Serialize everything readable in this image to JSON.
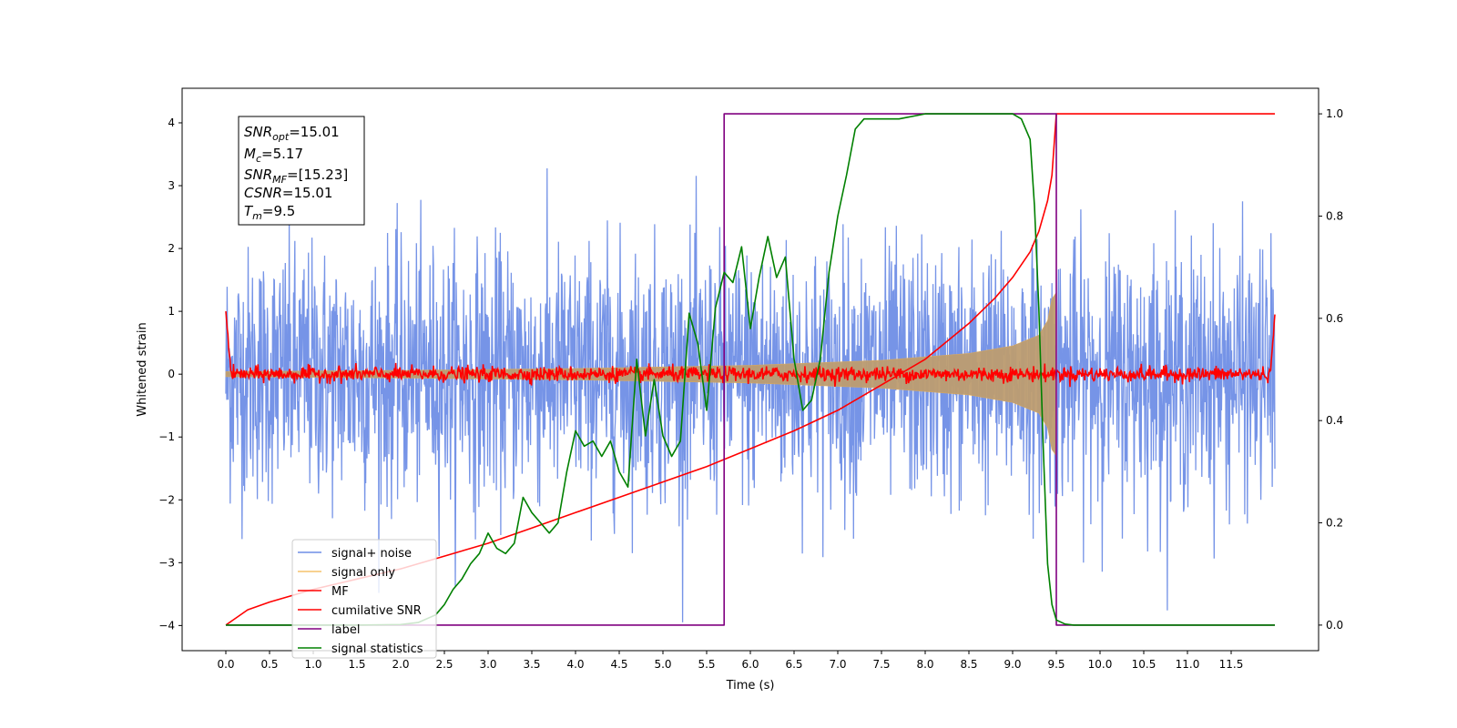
{
  "chart_data": {
    "type": "line",
    "xlabel": "Time (s)",
    "ylabel_left": "Whitened strain",
    "ylabel_right": "",
    "x_range": [
      -0.5,
      12.5
    ],
    "ylim_left": [
      -4.4,
      4.55
    ],
    "ylim_right": [
      -0.05,
      1.05
    ],
    "x_ticks": [
      "0.0",
      "0.5",
      "1.0",
      "1.5",
      "2.0",
      "2.5",
      "3.0",
      "3.5",
      "4.0",
      "4.5",
      "5.0",
      "5.5",
      "6.0",
      "6.5",
      "7.0",
      "7.5",
      "8.0",
      "8.5",
      "9.0",
      "9.5",
      "10.0",
      "10.5",
      "11.0",
      "11.5"
    ],
    "y_ticks_left": [
      "−4",
      "−3",
      "−2",
      "−1",
      "0",
      "1",
      "2",
      "3",
      "4"
    ],
    "y_ticks_right": [
      "0.0",
      "0.2",
      "0.4",
      "0.6",
      "0.8",
      "1.0"
    ],
    "legend_position": "lower-left",
    "annotation": {
      "snr_opt": {
        "base": "SNR",
        "sub": "opt",
        "value": "=15.01"
      },
      "mc": {
        "base": "M",
        "sub": "c",
        "value": "=5.17"
      },
      "snr_mf": {
        "base": "SNR",
        "sub": "MF",
        "value": "=[15.23]"
      },
      "csnr": {
        "base": "CSNR",
        "sub": "",
        "value": "=15.01"
      },
      "tm": {
        "base": "T",
        "sub": "m",
        "value": "=9.5"
      }
    },
    "series": [
      {
        "name": "signal+ noise",
        "color": "#6f8ee6",
        "axis": "left",
        "kind": "noise",
        "time_range": [
          0,
          12
        ],
        "amplitude_typical": 1.0,
        "peak_min": -3.95,
        "peak_max": 4.15
      },
      {
        "name": "signal only",
        "color": "#f5c26b",
        "axis": "left",
        "kind": "chirp",
        "time_range": [
          0,
          9.5
        ],
        "envelope": {
          "x": [
            0.0,
            2.0,
            4.0,
            6.0,
            7.5,
            8.5,
            9.0,
            9.3,
            9.4,
            9.45,
            9.5
          ],
          "y": [
            0.04,
            0.06,
            0.09,
            0.14,
            0.22,
            0.33,
            0.45,
            0.62,
            0.85,
            1.2,
            1.3
          ]
        }
      },
      {
        "name": "MF",
        "color": "#ff0000",
        "axis": "left",
        "kind": "mf",
        "time_range": [
          0,
          12
        ],
        "start_value": 1.0,
        "end_value": 0.95,
        "noise_level": 0.06
      },
      {
        "name": "cumilative SNR",
        "color": "#ff0000",
        "axis": "right",
        "x": [
          0.0,
          0.25,
          0.5,
          1.0,
          1.5,
          2.0,
          2.5,
          3.0,
          3.5,
          4.0,
          4.5,
          5.0,
          5.5,
          6.0,
          6.5,
          7.0,
          7.5,
          8.0,
          8.5,
          8.8,
          9.0,
          9.2,
          9.3,
          9.4,
          9.45,
          9.5,
          12.0
        ],
        "y": [
          0.0,
          0.03,
          0.045,
          0.07,
          0.09,
          0.11,
          0.135,
          0.16,
          0.19,
          0.22,
          0.25,
          0.28,
          0.31,
          0.345,
          0.38,
          0.42,
          0.47,
          0.52,
          0.59,
          0.64,
          0.68,
          0.73,
          0.77,
          0.83,
          0.88,
          1.0,
          1.0
        ]
      },
      {
        "name": "label",
        "color": "#800080",
        "axis": "right",
        "x": [
          0.0,
          5.7,
          5.7,
          9.5,
          9.5,
          9.55,
          9.55,
          12.0
        ],
        "y": [
          0.0,
          0.0,
          1.0,
          1.0,
          0.0,
          0.0,
          0.0,
          0.0
        ]
      },
      {
        "name": "signal statistics",
        "color": "#008000",
        "axis": "right",
        "x": [
          0.0,
          0.5,
          1.0,
          1.5,
          2.0,
          2.2,
          2.4,
          2.5,
          2.6,
          2.7,
          2.8,
          2.9,
          3.0,
          3.1,
          3.2,
          3.3,
          3.4,
          3.5,
          3.6,
          3.7,
          3.8,
          3.9,
          4.0,
          4.1,
          4.2,
          4.3,
          4.4,
          4.5,
          4.6,
          4.7,
          4.8,
          4.9,
          5.0,
          5.1,
          5.2,
          5.3,
          5.4,
          5.5,
          5.6,
          5.7,
          5.8,
          5.9,
          6.0,
          6.1,
          6.2,
          6.3,
          6.4,
          6.5,
          6.6,
          6.7,
          6.8,
          6.9,
          7.0,
          7.1,
          7.2,
          7.3,
          7.5,
          7.7,
          8.0,
          8.5,
          9.0,
          9.1,
          9.2,
          9.25,
          9.3,
          9.35,
          9.4,
          9.45,
          9.5,
          9.6,
          9.7,
          10.0,
          11.0,
          12.0
        ],
        "y": [
          0.0,
          0.0,
          0.0,
          0.0,
          0.001,
          0.005,
          0.02,
          0.04,
          0.07,
          0.09,
          0.12,
          0.14,
          0.18,
          0.15,
          0.14,
          0.16,
          0.25,
          0.22,
          0.2,
          0.18,
          0.2,
          0.3,
          0.38,
          0.35,
          0.36,
          0.33,
          0.36,
          0.3,
          0.27,
          0.52,
          0.37,
          0.48,
          0.37,
          0.33,
          0.36,
          0.61,
          0.55,
          0.42,
          0.62,
          0.69,
          0.67,
          0.74,
          0.58,
          0.68,
          0.76,
          0.68,
          0.72,
          0.52,
          0.42,
          0.44,
          0.52,
          0.69,
          0.8,
          0.88,
          0.97,
          0.99,
          0.99,
          0.99,
          1.0,
          1.0,
          1.0,
          0.99,
          0.95,
          0.82,
          0.62,
          0.35,
          0.12,
          0.04,
          0.01,
          0.002,
          0.0,
          0.0,
          0.0,
          0.0
        ]
      }
    ]
  }
}
